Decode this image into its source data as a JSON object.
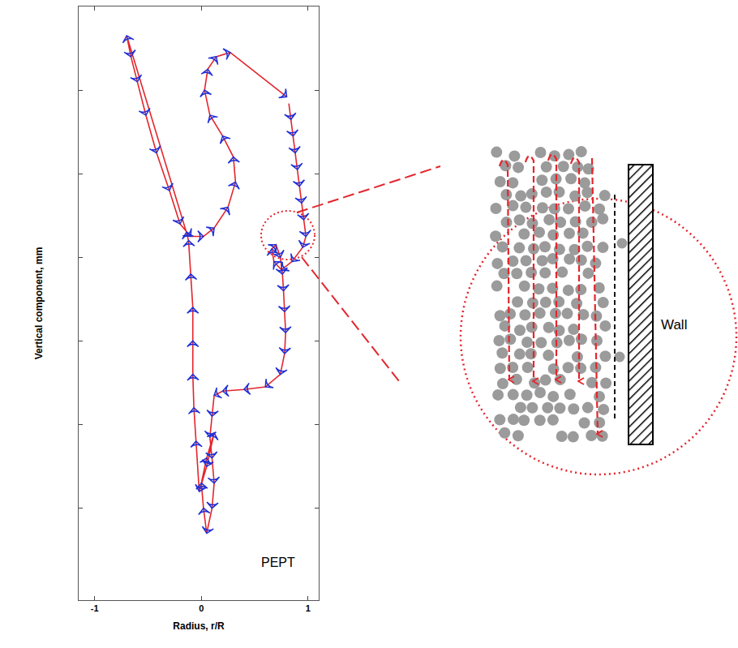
{
  "chart_data": {
    "type": "line",
    "x_label": "Radius, r/R",
    "y_label": "Vertical component, mm",
    "annotation": "PEPT",
    "color": "#e3262d",
    "marker": "arrow",
    "line_style": "solid",
    "tick_labels": "x",
    "grid": false,
    "xlim": [
      -1.15,
      1.1
    ],
    "xticks": [
      -1,
      0,
      1
    ],
    "ylim": [
      0,
      7.1
    ],
    "yticks": [
      1.1,
      2.1,
      3.1,
      4.1,
      5.1,
      6.1
    ],
    "x": [
      0.82,
      0.84,
      0.86,
      0.88,
      0.9,
      0.92,
      0.94,
      0.96,
      0.98,
      0.95,
      0.85,
      0.75,
      0.68,
      0.66,
      0.7,
      0.74,
      0.76,
      0.77,
      0.78,
      0.79,
      0.78,
      0.74,
      0.6,
      0.4,
      0.2,
      0.12,
      0.1,
      0.08,
      0.1,
      0.12,
      0.1,
      0.05,
      0.02,
      0.0,
      0.05,
      0.12,
      0.05,
      -0.02,
      -0.05,
      -0.07,
      -0.08,
      -0.08,
      -0.08,
      -0.1,
      -0.12,
      -0.14,
      -0.7,
      -0.66,
      -0.6,
      -0.52,
      -0.42,
      -0.3,
      -0.2,
      -0.1,
      0.02,
      0.12,
      0.25,
      0.32,
      0.3,
      0.2,
      0.08,
      0.03,
      0.06,
      0.14,
      0.27,
      0.8
    ],
    "values": [
      5.94,
      5.75,
      5.55,
      5.35,
      5.15,
      4.95,
      4.75,
      4.55,
      4.35,
      4.22,
      4.05,
      3.95,
      4.05,
      4.2,
      4.25,
      4.1,
      3.9,
      3.7,
      3.45,
      3.2,
      2.95,
      2.7,
      2.55,
      2.52,
      2.5,
      2.45,
      2.2,
      1.95,
      1.7,
      1.4,
      1.1,
      0.8,
      1.1,
      1.4,
      1.7,
      2.0,
      1.6,
      1.3,
      1.9,
      2.3,
      2.7,
      3.1,
      3.5,
      3.9,
      4.3,
      4.4,
      6.75,
      6.5,
      6.2,
      5.8,
      5.35,
      4.9,
      4.5,
      4.35,
      4.35,
      4.45,
      4.7,
      5.0,
      5.3,
      5.55,
      5.8,
      6.1,
      6.35,
      6.5,
      6.55,
      6.02
    ]
  },
  "inset": {
    "label": "Wall"
  }
}
